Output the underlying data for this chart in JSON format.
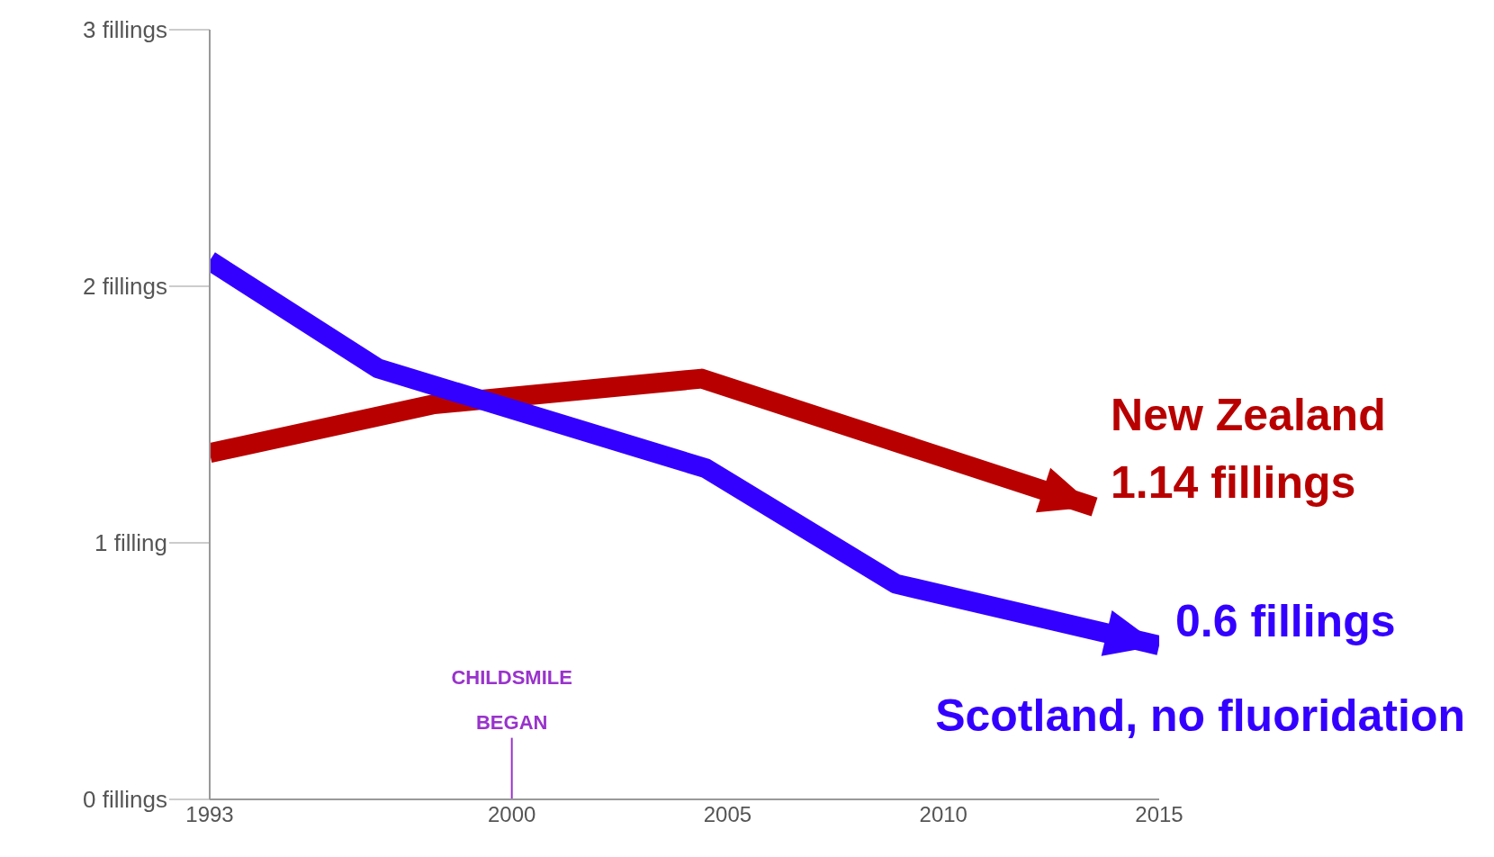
{
  "chart_data": {
    "type": "line",
    "xlim": [
      1993,
      2015
    ],
    "xticks": [
      1993,
      2000,
      2005,
      2010,
      2015
    ],
    "ylim": [
      0,
      3
    ],
    "yticks": [
      {
        "value": 0,
        "label": "0 fillings"
      },
      {
        "value": 1,
        "label": "1 filling"
      },
      {
        "value": 2,
        "label": "2 fillings"
      },
      {
        "value": 3,
        "label": "3 fillings"
      }
    ],
    "series": [
      {
        "name": "New Zealand",
        "color": "#b80000",
        "x": [
          1993,
          1998.2,
          2004.4,
          2013.5
        ],
        "values": [
          1.35,
          1.54,
          1.64,
          1.14
        ]
      },
      {
        "name": "Scotland, no fluoridation",
        "color": "#3300ff",
        "x": [
          1993,
          1996.9,
          2004.5,
          2008.9,
          2015
        ],
        "values": [
          2.1,
          1.68,
          1.29,
          0.84,
          0.6
        ]
      }
    ],
    "annotations": [
      {
        "text": "1.14 fillings",
        "x": 2013.5,
        "y": 1.14
      },
      {
        "text": "0.6 fillings",
        "x": 2015,
        "y": 0.6
      }
    ],
    "ref_lines": [
      {
        "axis": "x",
        "value": 2000,
        "label": "CHILDSMILE BEGAN",
        "color": "#9933cc"
      }
    ],
    "grid": false,
    "marker": "none",
    "line_style": "solid"
  }
}
